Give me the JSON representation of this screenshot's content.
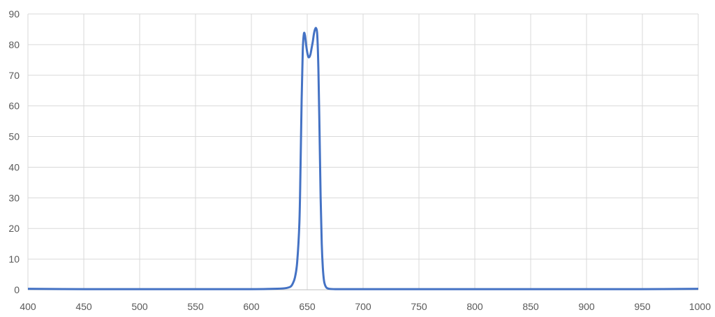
{
  "chart_data": {
    "type": "line",
    "title": "",
    "xlabel": "",
    "ylabel": "",
    "xlim": [
      400,
      1000
    ],
    "ylim": [
      0,
      90
    ],
    "x_ticks": [
      400,
      450,
      500,
      550,
      600,
      650,
      700,
      750,
      800,
      850,
      900,
      950,
      1000
    ],
    "y_ticks": [
      0,
      10,
      20,
      30,
      40,
      50,
      60,
      70,
      80,
      90
    ],
    "x_tick_labels": [
      "400",
      "450",
      "500",
      "550",
      "600",
      "650",
      "700",
      "750",
      "800",
      "850",
      "900",
      "950",
      "1000"
    ],
    "y_tick_labels": [
      "0",
      "10",
      "20",
      "30",
      "40",
      "50",
      "60",
      "70",
      "80",
      "90"
    ],
    "grid": true,
    "legend": "none",
    "series": [
      {
        "color": "#4472c4",
        "x": [
          400,
          450,
          500,
          550,
          600,
          620,
          630,
          635,
          637,
          639,
          641,
          643,
          644,
          645,
          646,
          647,
          648,
          649,
          650,
          651,
          652,
          653,
          654,
          655,
          656,
          657,
          658,
          659,
          660,
          661,
          662,
          663,
          664,
          665,
          666,
          667,
          668,
          670,
          675,
          680,
          700,
          750,
          800,
          850,
          900,
          950,
          1000
        ],
        "y": [
          0.3,
          0.2,
          0.2,
          0.2,
          0.2,
          0.3,
          0.5,
          1,
          2,
          4,
          9,
          22,
          40,
          62,
          78,
          83.5,
          83,
          80,
          77.5,
          76,
          76,
          77,
          79,
          81,
          83.5,
          85,
          85.3,
          83,
          72,
          52,
          30,
          15,
          7,
          3,
          1.5,
          0.8,
          0.5,
          0.3,
          0.2,
          0.2,
          0.2,
          0.2,
          0.2,
          0.2,
          0.2,
          0.2,
          0.3
        ]
      }
    ]
  }
}
